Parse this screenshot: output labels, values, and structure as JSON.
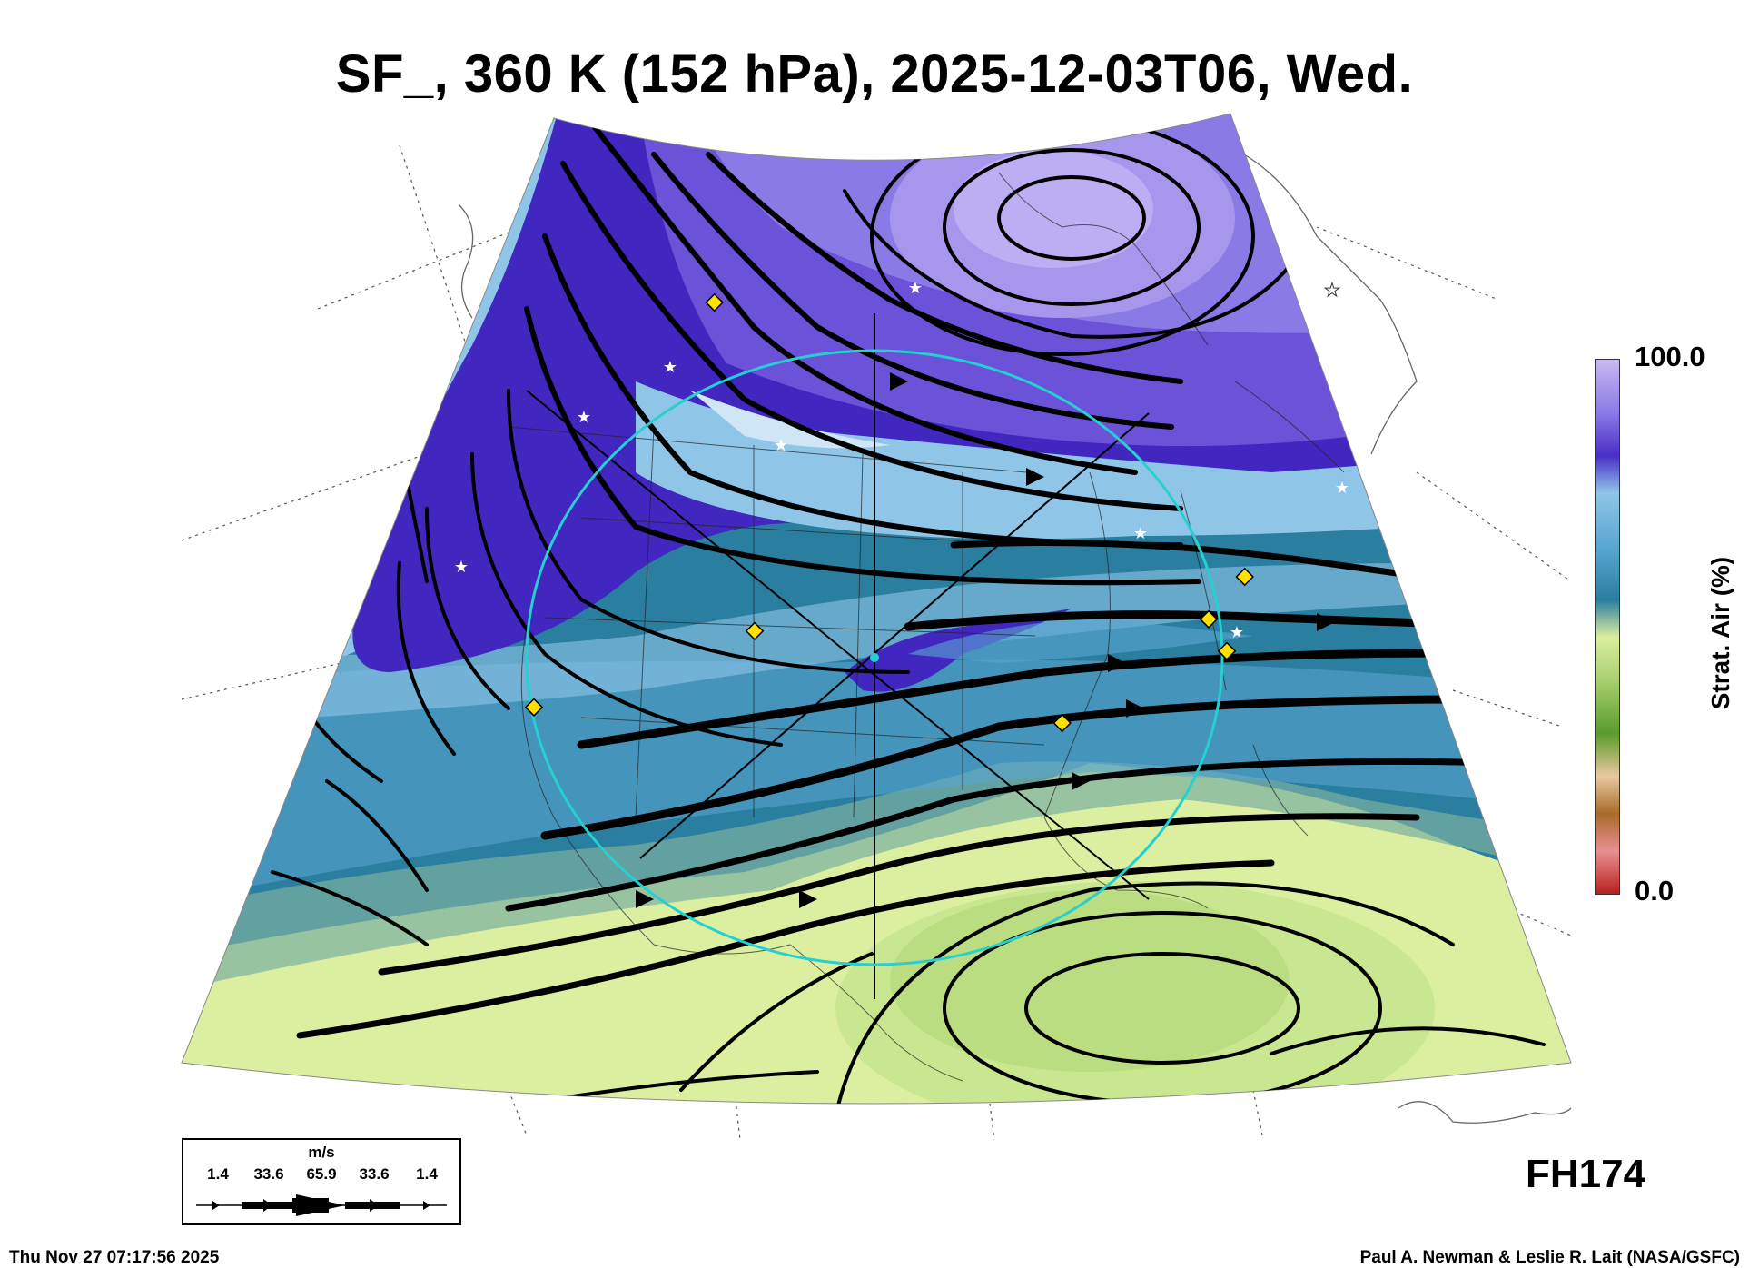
{
  "title": "SF_, 360 K (152 hPa), 2025-12-03T06, Wed.",
  "colorbar": {
    "label": "Strat. Air (%)",
    "max_label": "100.0",
    "min_label": "0.0",
    "stops": [
      {
        "level": 1.0,
        "color": "#c8b8f0"
      },
      {
        "level": 0.9,
        "color": "#8a7ae6"
      },
      {
        "level": 0.82,
        "color": "#4a2ec6"
      },
      {
        "level": 0.75,
        "color": "#8fc6e8"
      },
      {
        "level": 0.65,
        "color": "#5aa6d2"
      },
      {
        "level": 0.55,
        "color": "#2a7ea0"
      },
      {
        "level": 0.48,
        "color": "#dcefa0"
      },
      {
        "level": 0.4,
        "color": "#a8d070"
      },
      {
        "level": 0.3,
        "color": "#5a9a2a"
      },
      {
        "level": 0.22,
        "color": "#e8c8a0"
      },
      {
        "level": 0.15,
        "color": "#a86a2a"
      },
      {
        "level": 0.08,
        "color": "#e89090"
      },
      {
        "level": 0.0,
        "color": "#b82020"
      }
    ]
  },
  "wind_legend": {
    "units": "m/s",
    "values": [
      "1.4",
      "33.6",
      "65.9",
      "33.6",
      "1.4"
    ]
  },
  "forecast_hour": "FH174",
  "timestamp": "Thu Nov 27 07:17:56 2025",
  "credit": "Paul A. Newman & Leslie R. Lait (NASA/GSFC)",
  "colors": {
    "purple_core": "#4126c0",
    "purple_light": "#8a7ae6",
    "lavender": "#b6a8f0",
    "light_blue": "#8fc6e8",
    "mid_blue": "#5aa6d2",
    "teal": "#2a7ea0",
    "pale_green": "#dcefa0",
    "green": "#b6dd86",
    "ring": "#26d0d0",
    "marker_diamond": "#ffe000",
    "marker_star": "#ffffff"
  }
}
